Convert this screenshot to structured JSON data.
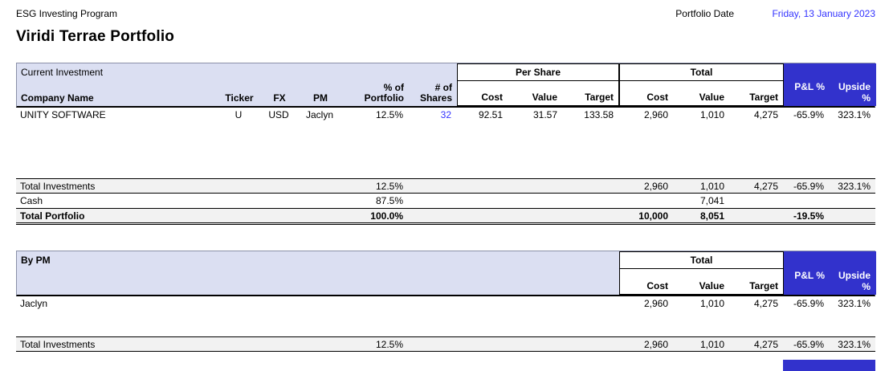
{
  "colors": {
    "accent_blue": "#3232CC",
    "header_lavender": "#DBDFF2",
    "total_row_gray": "#F2F2F2",
    "input_blue": "#3333FF"
  },
  "header": {
    "program": "ESG Investing Program",
    "title": "Viridi Terrae Portfolio",
    "date_label": "Portfolio Date",
    "date_value": "Friday, 13 January 2023"
  },
  "current_investment": {
    "section_title": "Current Investment",
    "col_company": "Company Name",
    "col_ticker": "Ticker",
    "col_fx": "FX",
    "col_pm": "PM",
    "col_pct": "% of\nPortfolio",
    "col_shares": "# of\nShares",
    "group_per_share": "Per Share",
    "group_total": "Total",
    "col_cost": "Cost",
    "col_value": "Value",
    "col_target": "Target",
    "col_pl": "P&L %",
    "col_upside": "Upside %",
    "rows": [
      {
        "company": "UNITY SOFTWARE",
        "ticker": "U",
        "fx": "USD",
        "pm": "Jaclyn",
        "pct": "12.5%",
        "shares": "32",
        "ps_cost": "92.51",
        "ps_value": "31.57",
        "ps_target": "133.58",
        "t_cost": "2,960",
        "t_value": "1,010",
        "t_target": "4,275",
        "pl": "-65.9%",
        "upside": "323.1%"
      }
    ],
    "total_investments": {
      "label": "Total Investments",
      "pct": "12.5%",
      "t_cost": "2,960",
      "t_value": "1,010",
      "t_target": "4,275",
      "pl": "-65.9%",
      "upside": "323.1%"
    },
    "cash": {
      "label": "Cash",
      "pct": "87.5%",
      "t_value": "7,041"
    },
    "total_portfolio": {
      "label": "Total Portfolio",
      "pct": "100.0%",
      "t_cost": "10,000",
      "t_value": "8,051",
      "pl": "-19.5%"
    }
  },
  "by_pm": {
    "section_title": "By PM",
    "group_total": "Total",
    "col_cost": "Cost",
    "col_value": "Value",
    "col_target": "Target",
    "col_pl": "P&L %",
    "col_upside": "Upside %",
    "rows": [
      {
        "pm": "Jaclyn",
        "t_cost": "2,960",
        "t_value": "1,010",
        "t_target": "4,275",
        "pl": "-65.9%",
        "upside": "323.1%"
      }
    ],
    "total_investments": {
      "label": "Total Investments",
      "pct": "12.5%",
      "t_cost": "2,960",
      "t_value": "1,010",
      "t_target": "4,275",
      "pl": "-65.9%",
      "upside": "323.1%"
    }
  }
}
